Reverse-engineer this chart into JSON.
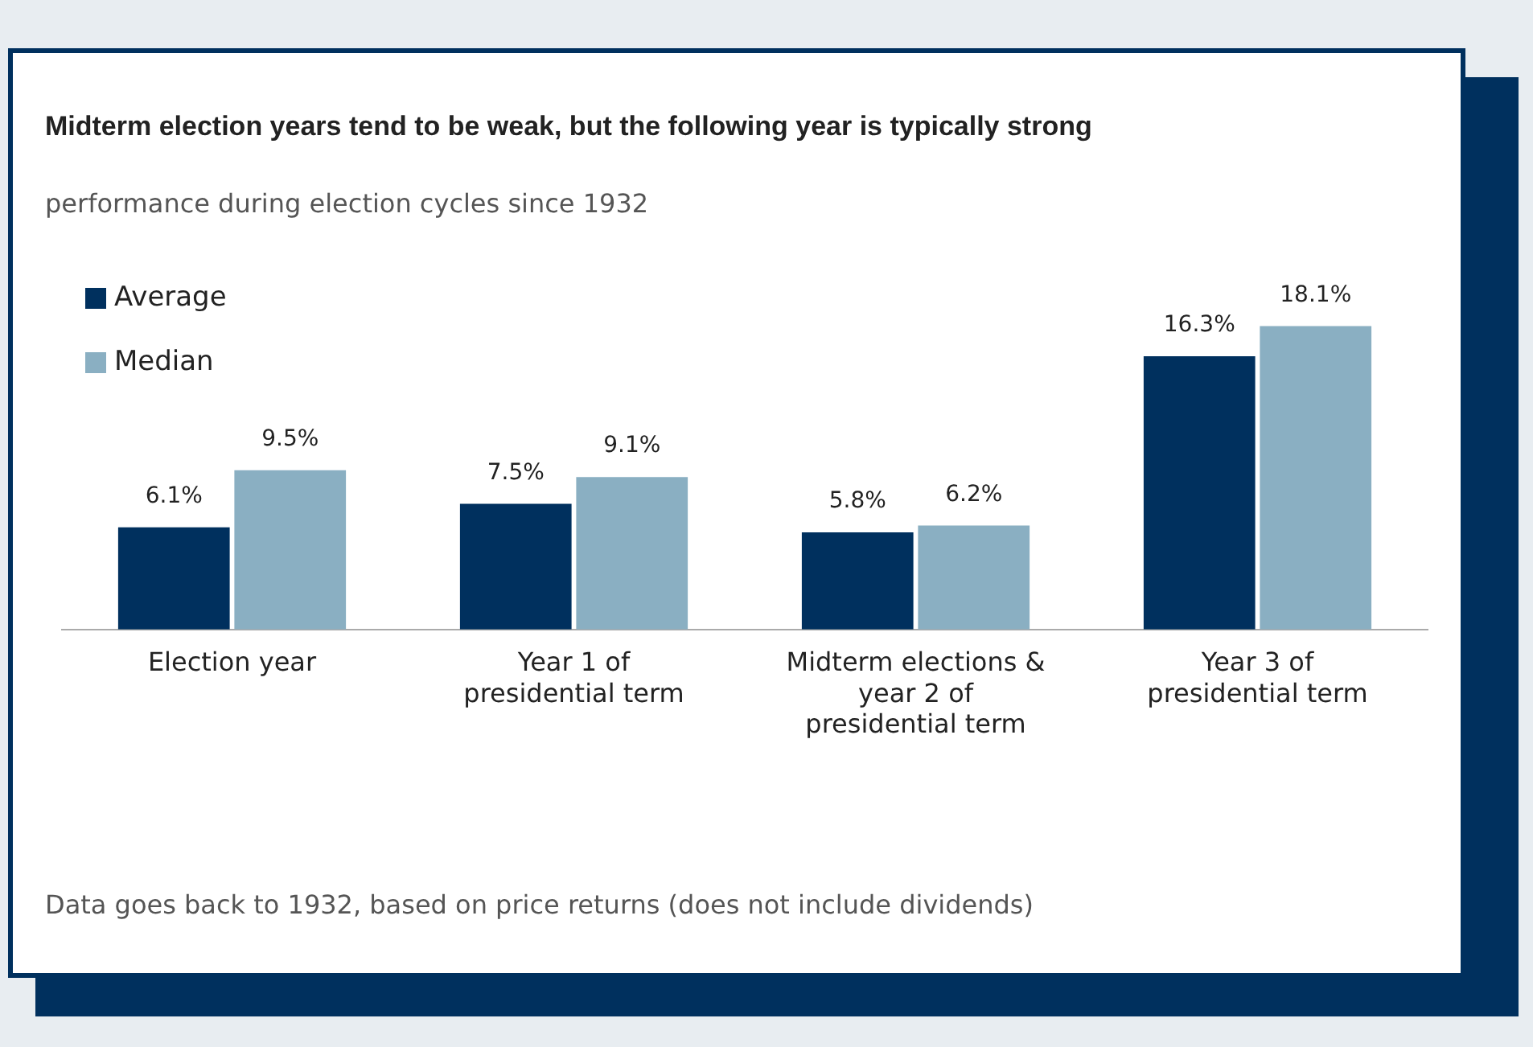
{
  "chart_data": {
    "type": "bar",
    "title": "Midterm election years tend to be weak, but the following year is typically  strong",
    "subtitle": "performance during election cycles since 1932",
    "categories": [
      "Election year",
      "Year 1 of presidential term",
      "Midterm elections & year 2 of presidential term",
      "Year 3 of presidential term"
    ],
    "series": [
      {
        "name": "Average",
        "color": "#00305e",
        "values": [
          6.1,
          7.5,
          5.8,
          16.3
        ],
        "value_labels": [
          "6.1%",
          "7.5%",
          "5.8%",
          "16.3%"
        ]
      },
      {
        "name": "Median",
        "color": "#8aafc2",
        "values": [
          9.5,
          9.1,
          6.2,
          18.1
        ],
        "value_labels": [
          "9.5%",
          "9.1%",
          "6.2%",
          "18.1%"
        ]
      }
    ],
    "grid": false,
    "legend": "top left",
    "tick_labels": "x",
    "annotations": [
      "Data goes back to 1932, based on price returns (does not include dividends)"
    ]
  }
}
